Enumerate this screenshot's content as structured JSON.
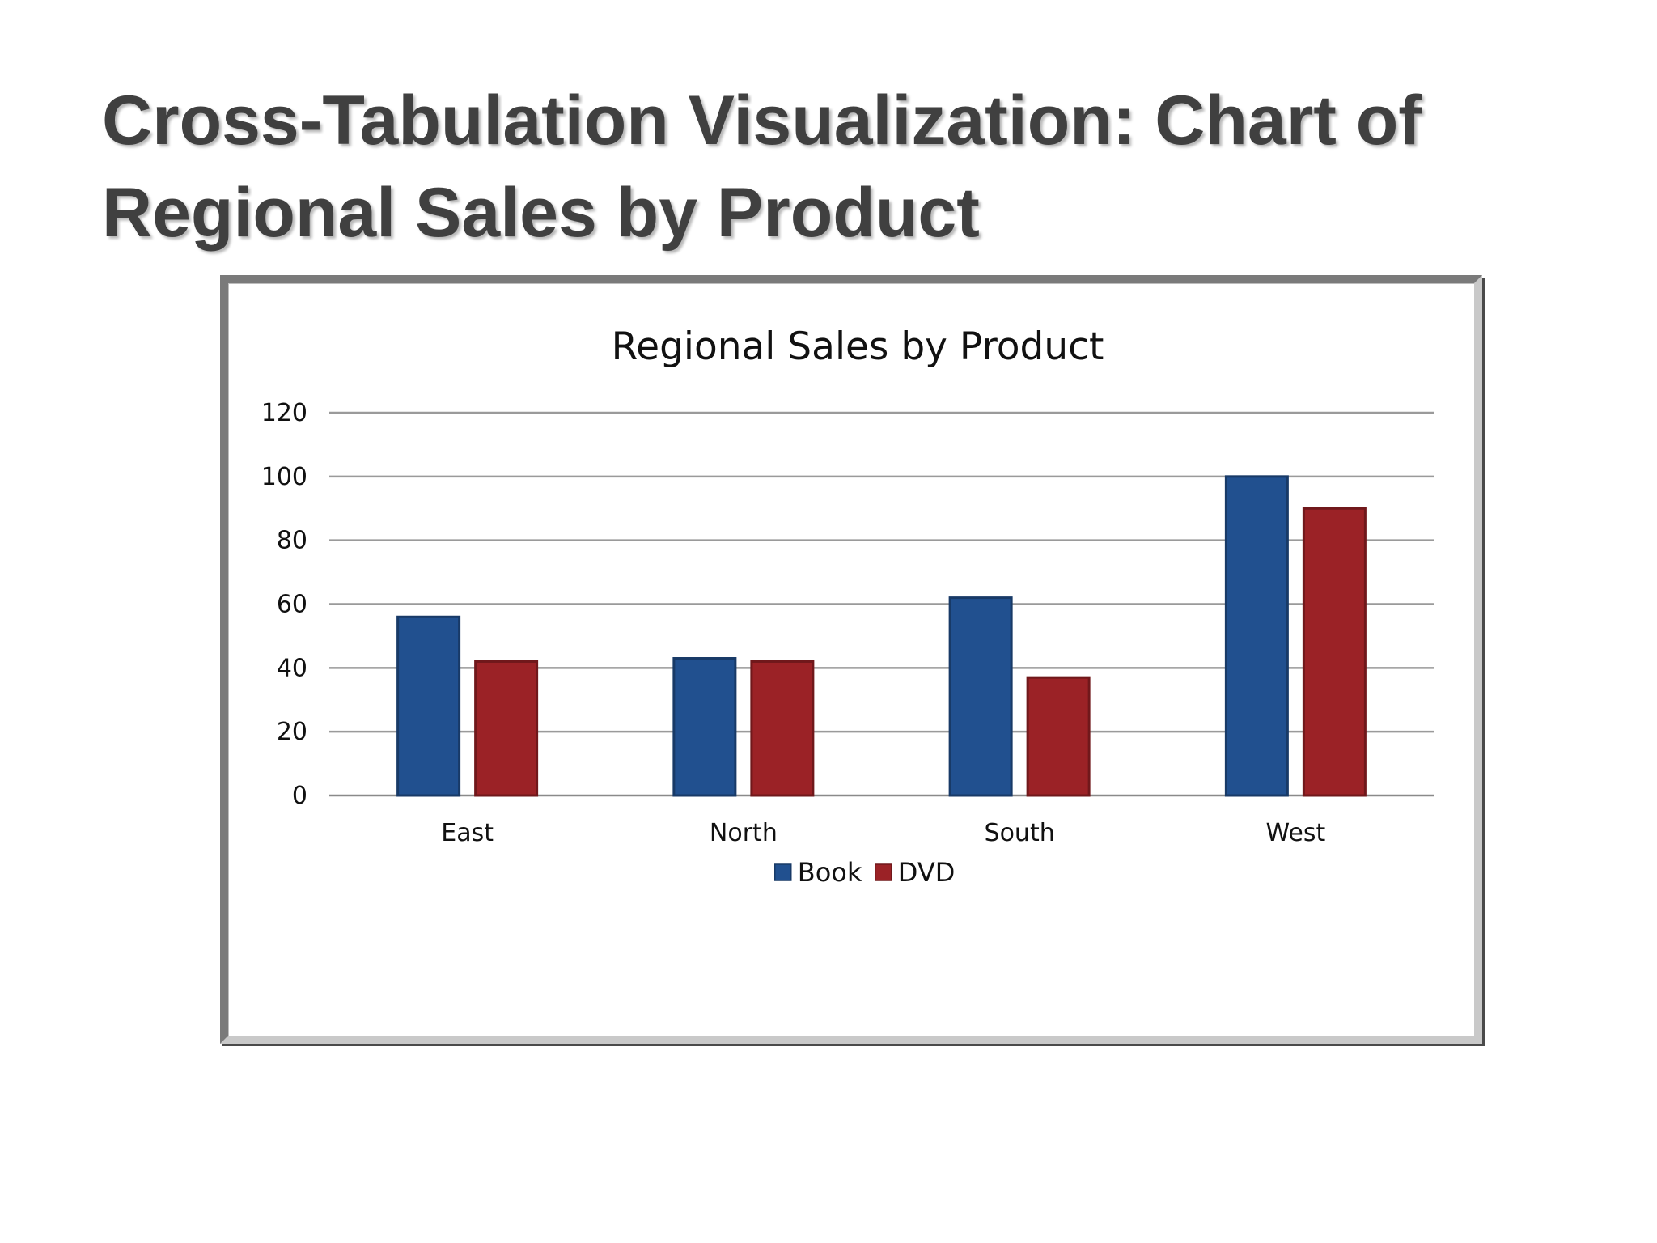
{
  "slide": {
    "title": "Cross-Tabulation Visualization: Chart of Regional Sales by Product"
  },
  "chart_data": {
    "type": "bar",
    "title": "Regional Sales by Product",
    "xlabel": "",
    "ylabel": "",
    "categories": [
      "East",
      "North",
      "South",
      "West"
    ],
    "series": [
      {
        "name": "Book",
        "values": [
          56,
          43,
          62,
          100
        ],
        "color": "#21508f"
      },
      {
        "name": "DVD",
        "values": [
          42,
          42,
          37,
          90
        ],
        "color": "#9b2226"
      }
    ],
    "ylim": [
      0,
      120
    ],
    "yticks": [
      0,
      20,
      40,
      60,
      80,
      100,
      120
    ],
    "grid": true,
    "legend_position": "bottom"
  }
}
